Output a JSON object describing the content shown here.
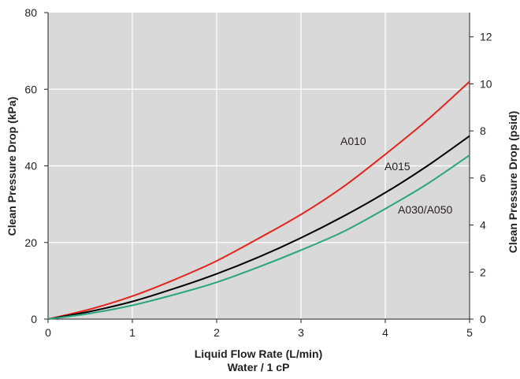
{
  "chart_data": {
    "type": "line",
    "xlabel": "Liquid Flow Rate (L/min)",
    "xlabel_sub": "Water / 1 cP",
    "ylabel_left": "Clean Pressure Drop (kPa)",
    "ylabel_right": "Clean Pressure Drop (psid)",
    "xlim": [
      0,
      5
    ],
    "ylim_left": [
      0,
      80
    ],
    "ylim_right": [
      0,
      13.03
    ],
    "x_ticks": [
      "0",
      "1",
      "2",
      "3",
      "4",
      "5"
    ],
    "y_left_ticks": [
      "0",
      "20",
      "40",
      "60",
      "80"
    ],
    "y_right_ticks": [
      "0",
      "2",
      "4",
      "6",
      "8",
      "10",
      "12"
    ],
    "grid": true,
    "background_color": "#d9d9d9",
    "x": [
      0,
      0.5,
      1,
      1.5,
      2,
      2.5,
      3,
      3.5,
      4,
      4.5,
      5
    ],
    "series": [
      {
        "name": "A010",
        "color": "#e3241b",
        "values": [
          0,
          2.6,
          6.0,
          10.3,
          15.2,
          21.1,
          27.3,
          34.5,
          43.0,
          52.0,
          62.0
        ]
      },
      {
        "name": "A015",
        "color": "#000000",
        "values": [
          0,
          2.0,
          4.6,
          8.0,
          11.8,
          16.2,
          21.2,
          26.8,
          33.0,
          40.0,
          47.8
        ]
      },
      {
        "name": "A030/A050",
        "color": "#2aa57c",
        "values": [
          0,
          1.5,
          3.6,
          6.4,
          9.6,
          13.6,
          18.0,
          22.8,
          28.8,
          35.3,
          42.8
        ]
      }
    ]
  }
}
